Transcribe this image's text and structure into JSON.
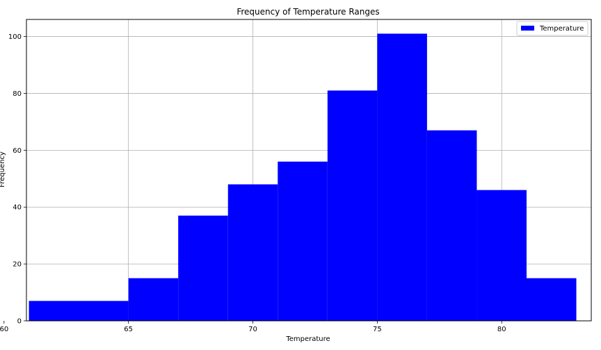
{
  "chart_data": {
    "type": "bar",
    "title": "Frequency of Temperature Ranges",
    "xlabel": "Temperature",
    "ylabel": "Frequency",
    "xlim": [
      60.9,
      83.6
    ],
    "ylim": [
      0,
      106
    ],
    "x_ticks": [
      60,
      65,
      70,
      75,
      80
    ],
    "y_ticks": [
      0,
      20,
      40,
      60,
      80,
      100
    ],
    "grid": true,
    "legend_position": "top-right",
    "series": [
      {
        "name": "Temperature",
        "color": "#0000ff",
        "bins": [
          {
            "x0": 61,
            "x1": 65,
            "value": 7
          },
          {
            "x0": 65,
            "x1": 67,
            "value": 15
          },
          {
            "x0": 67,
            "x1": 69,
            "value": 37
          },
          {
            "x0": 69,
            "x1": 71,
            "value": 48
          },
          {
            "x0": 71,
            "x1": 73,
            "value": 56
          },
          {
            "x0": 73,
            "x1": 75,
            "value": 81
          },
          {
            "x0": 75,
            "x1": 77,
            "value": 101
          },
          {
            "x0": 77,
            "x1": 79,
            "value": 67
          },
          {
            "x0": 79,
            "x1": 81,
            "value": 46
          },
          {
            "x0": 81,
            "x1": 83,
            "value": 15
          }
        ]
      }
    ]
  }
}
